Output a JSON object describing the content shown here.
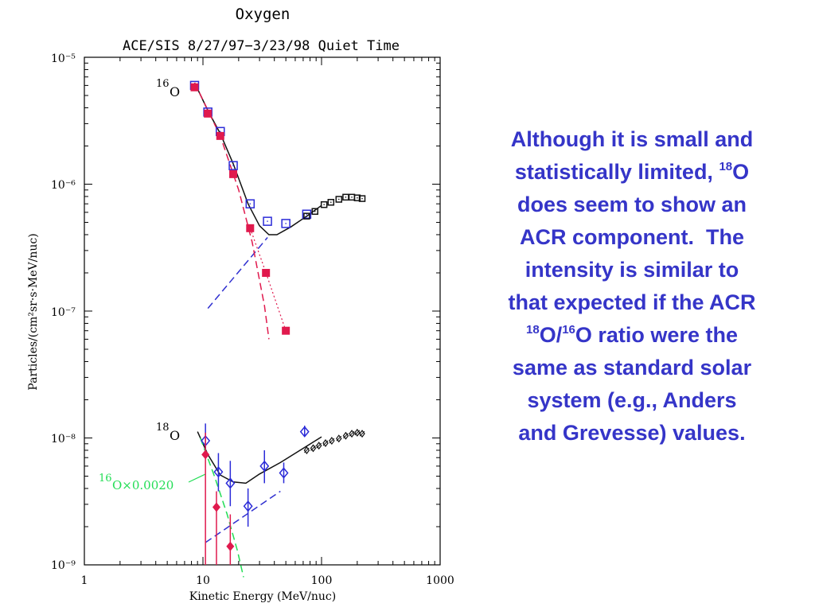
{
  "colors": {
    "o16_open": "#2b2bd8",
    "o16_filled": "#e0194d",
    "o16_black": "#111111",
    "o18_open": "#2b2bd8",
    "o18_filled": "#e0194d",
    "o18_black": "#111111",
    "scaled_green": "#22dd55",
    "acr_dashed": "#3030d0",
    "gcr_dashed": "#e0194d",
    "text_blue": "#3535c8"
  },
  "chart_data": {
    "type": "scatter",
    "title": "Oxygen",
    "subtitle": "ACE/SIS 8/27/97−3/23/98 Quiet Time",
    "xlabel": "Kinetic Energy (MeV/nuc)",
    "ylabel": "Particles/(cm²sr·s·MeV/nuc)",
    "xscale": "log",
    "yscale": "log",
    "xlim": [
      1,
      1000
    ],
    "ylim": [
      1e-09,
      1e-05
    ],
    "x_ticks": [
      "1",
      "10",
      "100",
      "1000"
    ],
    "y_ticks": [
      "10⁻⁹",
      "10⁻⁸",
      "10⁻⁷",
      "10⁻⁶",
      "10⁻⁵"
    ],
    "labels": {
      "o16": "16O",
      "o18": "18O",
      "o16_scaled": "16O×0.0020"
    },
    "series": [
      {
        "x": [
          8.5,
          11,
          14,
          18,
          25,
          35,
          50,
          75
        ],
        "y": [
          6e-06,
          3.7e-06,
          2.6e-06,
          1.4e-06,
          7e-07,
          5.1e-07,
          4.9e-07,
          5.8e-07
        ]
      },
      {
        "x": [
          8.5,
          11,
          14,
          18,
          25,
          34,
          50
        ],
        "y": [
          5.8e-06,
          3.6e-06,
          2.4e-06,
          1.2e-06,
          4.5e-07,
          2e-07,
          7e-08
        ]
      },
      {
        "x": [
          75,
          88,
          105,
          120,
          140,
          160,
          180,
          200,
          220
        ],
        "y": [
          5.6e-07,
          6.1e-07,
          6.9e-07,
          7.2e-07,
          7.6e-07,
          7.9e-07,
          7.9e-07,
          7.8e-07,
          7.7e-07
        ]
      },
      {
        "x": [
          10.5,
          13.5,
          17,
          24,
          33,
          48,
          72
        ],
        "y": [
          9.5e-09,
          5.4e-09,
          4.4e-09,
          2.9e-09,
          6e-09,
          5.3e-09,
          1.12e-08
        ]
      },
      {
        "x": [
          10.5,
          13,
          17
        ],
        "y": [
          7.4e-09,
          2.85e-09,
          1.4e-09
        ]
      },
      {
        "x": [
          75,
          85,
          95,
          108,
          122,
          140,
          160,
          180,
          200,
          220
        ],
        "y": [
          8e-09,
          8.3e-09,
          8.7e-09,
          9.1e-09,
          9.5e-09,
          9.9e-09,
          1.04e-08,
          1.08e-08,
          1.1e-08,
          1.08e-08
        ]
      }
    ]
  },
  "explanation": {
    "l1": "Although it is small and",
    "l2": "statistically limited,",
    "l2_sup": "18",
    "l2_end": "O",
    "l3": "does seem to show an",
    "l4": "ACR component.  The",
    "l5": "intensity is similar to",
    "l6": "that expected if the ACR",
    "l7_sup1": "18",
    "l7_mid": "O/",
    "l7_sup2": "16",
    "l7_end": "O ratio were the",
    "l8": "same as standard solar",
    "l9": "system (e.g., Anders",
    "l10": "and Grevesse) values."
  }
}
